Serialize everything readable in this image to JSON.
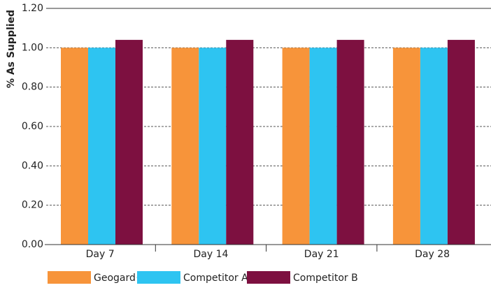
{
  "chart_data": {
    "type": "bar",
    "y_label": "% As Supplied",
    "categories": [
      "Day 7",
      "Day 14",
      "Day 21",
      "Day 28"
    ],
    "series": [
      {
        "name": "Geogard® 221",
        "color": "#f7943a",
        "values": [
          1.0,
          1.0,
          1.0,
          1.0
        ]
      },
      {
        "name": "Competitor A",
        "color": "#2ec4f1",
        "values": [
          1.0,
          1.0,
          1.0,
          1.0
        ]
      },
      {
        "name": "Competitor B",
        "color": "#7d1040",
        "values": [
          1.04,
          1.04,
          1.04,
          1.04
        ]
      }
    ],
    "ylim": [
      0,
      1.2
    ],
    "yticks": [
      {
        "value": 0,
        "label": "0.00"
      },
      {
        "value": 0.2,
        "label": "0.20"
      },
      {
        "value": 0.4,
        "label": "0.40"
      },
      {
        "value": 0.6,
        "label": "0.60"
      },
      {
        "value": 0.8,
        "label": "0.80"
      },
      {
        "value": 1.0,
        "label": "1.00"
      },
      {
        "value": 1.2,
        "label": "1.20"
      }
    ],
    "grid": true,
    "legend": "bottom"
  }
}
